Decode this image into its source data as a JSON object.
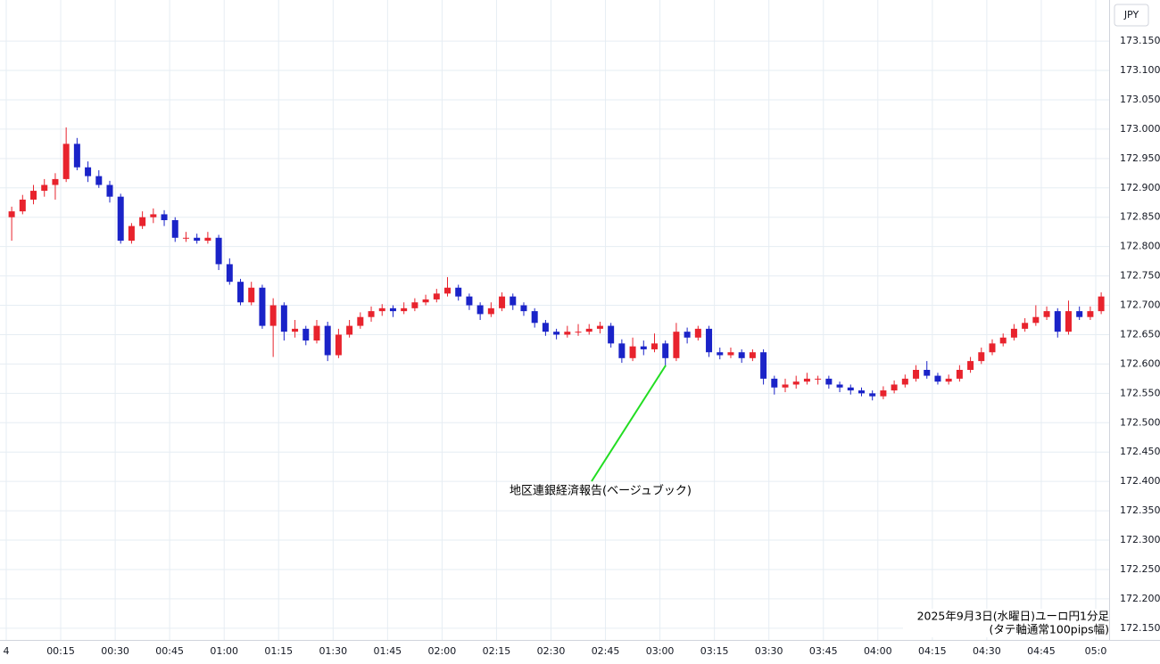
{
  "chart_data": {
    "type": "candlestick",
    "currency": "JPY",
    "annotation": "地区連銀経済報告(ベージュブック)",
    "notes": [
      "2025年9月3日(水曜日)ユーロ円1分足",
      "(タテ軸通常100pips幅)"
    ],
    "up_color": "#e8232d",
    "down_color": "#1a23c8",
    "ylim": [
      172.13,
      173.22
    ],
    "yticks": [
      {
        "value": 172.15,
        "label": "172.150"
      },
      {
        "value": 172.2,
        "label": "172.200"
      },
      {
        "value": 172.25,
        "label": "172.250"
      },
      {
        "value": 172.3,
        "label": "172.300"
      },
      {
        "value": 172.35,
        "label": "172.350"
      },
      {
        "value": 172.4,
        "label": "172.400"
      },
      {
        "value": 172.45,
        "label": "172.450"
      },
      {
        "value": 172.5,
        "label": "172.500"
      },
      {
        "value": 172.55,
        "label": "172.550"
      },
      {
        "value": 172.6,
        "label": "172.600"
      },
      {
        "value": 172.65,
        "label": "172.650"
      },
      {
        "value": 172.7,
        "label": "172.700"
      },
      {
        "value": 172.75,
        "label": "172.750"
      },
      {
        "value": 172.8,
        "label": "172.800"
      },
      {
        "value": 172.85,
        "label": "172.850"
      },
      {
        "value": 172.9,
        "label": "172.900"
      },
      {
        "value": 172.95,
        "label": "172.950"
      },
      {
        "value": 173.0,
        "label": "173.000"
      },
      {
        "value": 173.05,
        "label": "173.050"
      },
      {
        "value": 173.1,
        "label": "173.100"
      },
      {
        "value": 173.15,
        "label": "173.150"
      }
    ],
    "grid": true,
    "categories": [
      "4",
      null,
      null,
      null,
      null,
      "00:15",
      null,
      null,
      null,
      null,
      "00:30",
      null,
      null,
      null,
      null,
      "00:45",
      null,
      null,
      null,
      null,
      "01:00",
      null,
      null,
      null,
      null,
      "01:15",
      null,
      null,
      null,
      null,
      "01:30",
      null,
      null,
      null,
      null,
      "01:45",
      null,
      null,
      null,
      null,
      "02:00",
      null,
      null,
      null,
      null,
      "02:15",
      null,
      null,
      null,
      null,
      "02:30",
      null,
      null,
      null,
      null,
      "02:45",
      null,
      null,
      null,
      null,
      "03:00",
      null,
      null,
      null,
      null,
      "03:15",
      null,
      null,
      null,
      null,
      "03:30",
      null,
      null,
      null,
      null,
      "03:45",
      null,
      null,
      null,
      null,
      "04:00",
      null,
      null,
      null,
      null,
      "04:15",
      null,
      null,
      null,
      null,
      "04:30",
      null,
      null,
      null,
      null,
      "04:45",
      null,
      null,
      null,
      null,
      "05:0"
    ],
    "ohlc": [
      [
        172.85,
        172.868,
        172.81,
        172.86
      ],
      [
        172.86,
        172.888,
        172.855,
        172.88
      ],
      [
        172.88,
        172.905,
        172.872,
        172.895
      ],
      [
        172.895,
        172.915,
        172.885,
        172.905
      ],
      [
        172.905,
        172.925,
        172.88,
        172.915
      ],
      [
        172.915,
        173.003,
        172.91,
        172.975
      ],
      [
        172.975,
        172.985,
        172.93,
        172.935
      ],
      [
        172.935,
        172.945,
        172.91,
        172.92
      ],
      [
        172.92,
        172.93,
        172.9,
        172.905
      ],
      [
        172.905,
        172.912,
        172.875,
        172.885
      ],
      [
        172.885,
        172.89,
        172.805,
        172.81
      ],
      [
        172.81,
        172.84,
        172.805,
        172.835
      ],
      [
        172.835,
        172.86,
        172.83,
        172.85
      ],
      [
        172.85,
        172.865,
        172.84,
        172.855
      ],
      [
        172.855,
        172.862,
        172.835,
        172.845
      ],
      [
        172.845,
        172.85,
        172.808,
        172.815
      ],
      [
        172.815,
        172.825,
        172.808,
        172.815
      ],
      [
        172.815,
        172.822,
        172.805,
        172.81
      ],
      [
        172.81,
        172.825,
        172.805,
        172.815
      ],
      [
        172.815,
        172.82,
        172.76,
        172.77
      ],
      [
        172.77,
        172.78,
        172.735,
        172.74
      ],
      [
        172.74,
        172.745,
        172.7,
        172.705
      ],
      [
        172.705,
        172.74,
        172.7,
        172.73
      ],
      [
        172.73,
        172.735,
        172.66,
        172.665
      ],
      [
        172.665,
        172.712,
        172.612,
        172.7
      ],
      [
        172.7,
        172.705,
        172.64,
        172.655
      ],
      [
        172.655,
        172.675,
        172.645,
        172.66
      ],
      [
        172.66,
        172.665,
        172.632,
        172.64
      ],
      [
        172.64,
        172.675,
        172.635,
        172.665
      ],
      [
        172.665,
        172.672,
        172.605,
        172.615
      ],
      [
        172.615,
        172.66,
        172.61,
        172.65
      ],
      [
        172.65,
        172.675,
        172.645,
        172.665
      ],
      [
        172.665,
        172.688,
        172.66,
        172.68
      ],
      [
        172.68,
        172.698,
        172.672,
        172.69
      ],
      [
        172.69,
        172.702,
        172.682,
        172.695
      ],
      [
        172.695,
        172.7,
        172.68,
        172.69
      ],
      [
        172.69,
        172.705,
        172.685,
        172.695
      ],
      [
        172.695,
        172.712,
        172.69,
        172.705
      ],
      [
        172.705,
        172.718,
        172.7,
        172.71
      ],
      [
        172.71,
        172.728,
        172.705,
        172.72
      ],
      [
        172.72,
        172.748,
        172.715,
        172.73
      ],
      [
        172.73,
        172.735,
        172.708,
        172.715
      ],
      [
        172.715,
        172.72,
        172.692,
        172.7
      ],
      [
        172.7,
        172.705,
        172.675,
        172.685
      ],
      [
        172.685,
        172.705,
        172.68,
        172.695
      ],
      [
        172.695,
        172.722,
        172.69,
        172.715
      ],
      [
        172.715,
        172.72,
        172.692,
        172.7
      ],
      [
        172.7,
        172.705,
        172.682,
        172.69
      ],
      [
        172.69,
        172.695,
        172.662,
        172.67
      ],
      [
        172.67,
        172.675,
        172.648,
        172.655
      ],
      [
        172.655,
        172.66,
        172.642,
        172.65
      ],
      [
        172.65,
        172.665,
        172.645,
        172.655
      ],
      [
        172.655,
        172.668,
        172.648,
        172.655
      ],
      [
        172.655,
        172.668,
        172.65,
        172.66
      ],
      [
        172.66,
        172.672,
        172.652,
        172.665
      ],
      [
        172.665,
        172.67,
        172.628,
        172.635
      ],
      [
        172.635,
        172.642,
        172.602,
        172.61
      ],
      [
        172.61,
        172.645,
        172.605,
        172.63
      ],
      [
        172.63,
        172.64,
        172.615,
        172.625
      ],
      [
        172.625,
        172.652,
        172.62,
        172.635
      ],
      [
        172.635,
        172.64,
        172.595,
        172.61
      ],
      [
        172.61,
        172.67,
        172.605,
        172.655
      ],
      [
        172.655,
        172.662,
        172.635,
        172.645
      ],
      [
        172.645,
        172.665,
        172.64,
        172.66
      ],
      [
        172.66,
        172.665,
        172.612,
        172.62
      ],
      [
        172.62,
        172.628,
        172.608,
        172.615
      ],
      [
        172.615,
        172.628,
        172.61,
        172.62
      ],
      [
        172.62,
        172.625,
        172.602,
        172.61
      ],
      [
        172.61,
        172.625,
        172.605,
        172.62
      ],
      [
        172.62,
        172.625,
        172.565,
        172.575
      ],
      [
        172.575,
        172.58,
        172.548,
        172.56
      ],
      [
        172.56,
        172.575,
        172.552,
        172.565
      ],
      [
        172.565,
        172.58,
        172.558,
        172.57
      ],
      [
        172.57,
        172.585,
        172.565,
        172.575
      ],
      [
        172.575,
        172.58,
        172.565,
        172.575
      ],
      [
        172.575,
        172.58,
        172.558,
        172.565
      ],
      [
        172.565,
        172.57,
        172.552,
        172.56
      ],
      [
        172.56,
        172.565,
        172.548,
        172.555
      ],
      [
        172.555,
        172.56,
        172.545,
        172.55
      ],
      [
        172.55,
        172.555,
        172.538,
        172.545
      ],
      [
        172.545,
        172.562,
        172.54,
        172.555
      ],
      [
        172.555,
        172.572,
        172.55,
        172.565
      ],
      [
        172.565,
        172.582,
        172.56,
        172.575
      ],
      [
        172.575,
        172.598,
        172.57,
        172.59
      ],
      [
        172.59,
        172.605,
        172.575,
        172.58
      ],
      [
        172.58,
        172.585,
        172.565,
        172.57
      ],
      [
        172.57,
        172.582,
        172.565,
        172.575
      ],
      [
        172.575,
        172.598,
        172.57,
        172.59
      ],
      [
        172.59,
        172.612,
        172.585,
        172.605
      ],
      [
        172.605,
        172.628,
        172.6,
        172.62
      ],
      [
        172.62,
        172.642,
        172.615,
        172.635
      ],
      [
        172.635,
        172.652,
        172.63,
        172.645
      ],
      [
        172.645,
        172.668,
        172.64,
        172.66
      ],
      [
        172.66,
        172.678,
        172.655,
        172.67
      ],
      [
        172.67,
        172.7,
        172.665,
        172.68
      ],
      [
        172.68,
        172.698,
        172.675,
        172.69
      ],
      [
        172.69,
        172.695,
        172.645,
        172.655
      ],
      [
        172.655,
        172.708,
        172.65,
        172.69
      ],
      [
        172.69,
        172.698,
        172.675,
        172.68
      ],
      [
        172.68,
        172.698,
        172.675,
        172.69
      ],
      [
        172.69,
        172.722,
        172.685,
        172.715
      ]
    ]
  }
}
